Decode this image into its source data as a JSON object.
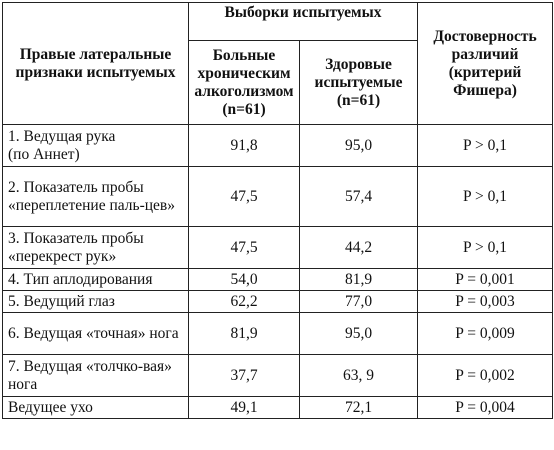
{
  "headers": {
    "signs": "Правые латеральные признаки испытуемых",
    "samples": "Выборки испытуемых",
    "sick": "Больные хроническим алкоголизмом (n=61)",
    "healthy": "Здоровые испытуемые (n=61)",
    "significance": "Достоверность различий (критерий Фишера)"
  },
  "rows": [
    {
      "label": "1. Ведущая рука\n (по Аннет)",
      "sick": "91,8",
      "healthy": "95,0",
      "p": "P > 0,1"
    },
    {
      "label": "2. Показатель пробы «переплетение паль-цев»",
      "sick": "47,5",
      "healthy": "57,4",
      "p": "P > 0,1"
    },
    {
      "label": "3. Показатель пробы «перекрест рук»",
      "sick": "47,5",
      "healthy": "44,2",
      "p": "P > 0,1"
    },
    {
      "label": "4. Тип аплодирования",
      "sick": "54,0",
      "healthy": "81,9",
      "p": "P = 0,001"
    },
    {
      "label": "5. Ведущий глаз",
      "sick": "62,2",
      "healthy": "77,0",
      "p": "P = 0,003"
    },
    {
      "label": "6. Ведущая «точная» нога",
      "sick": "81,9",
      "healthy": "95,0",
      "p": "P = 0,009"
    },
    {
      "label": "7. Ведущая «толчко-вая» нога",
      "sick": "37,7",
      "healthy": "63, 9",
      "p": "P = 0,002"
    },
    {
      "label": "Ведущее ухо",
      "sick": "49,1",
      "healthy": "72,1",
      "p": "P = 0,004"
    }
  ]
}
